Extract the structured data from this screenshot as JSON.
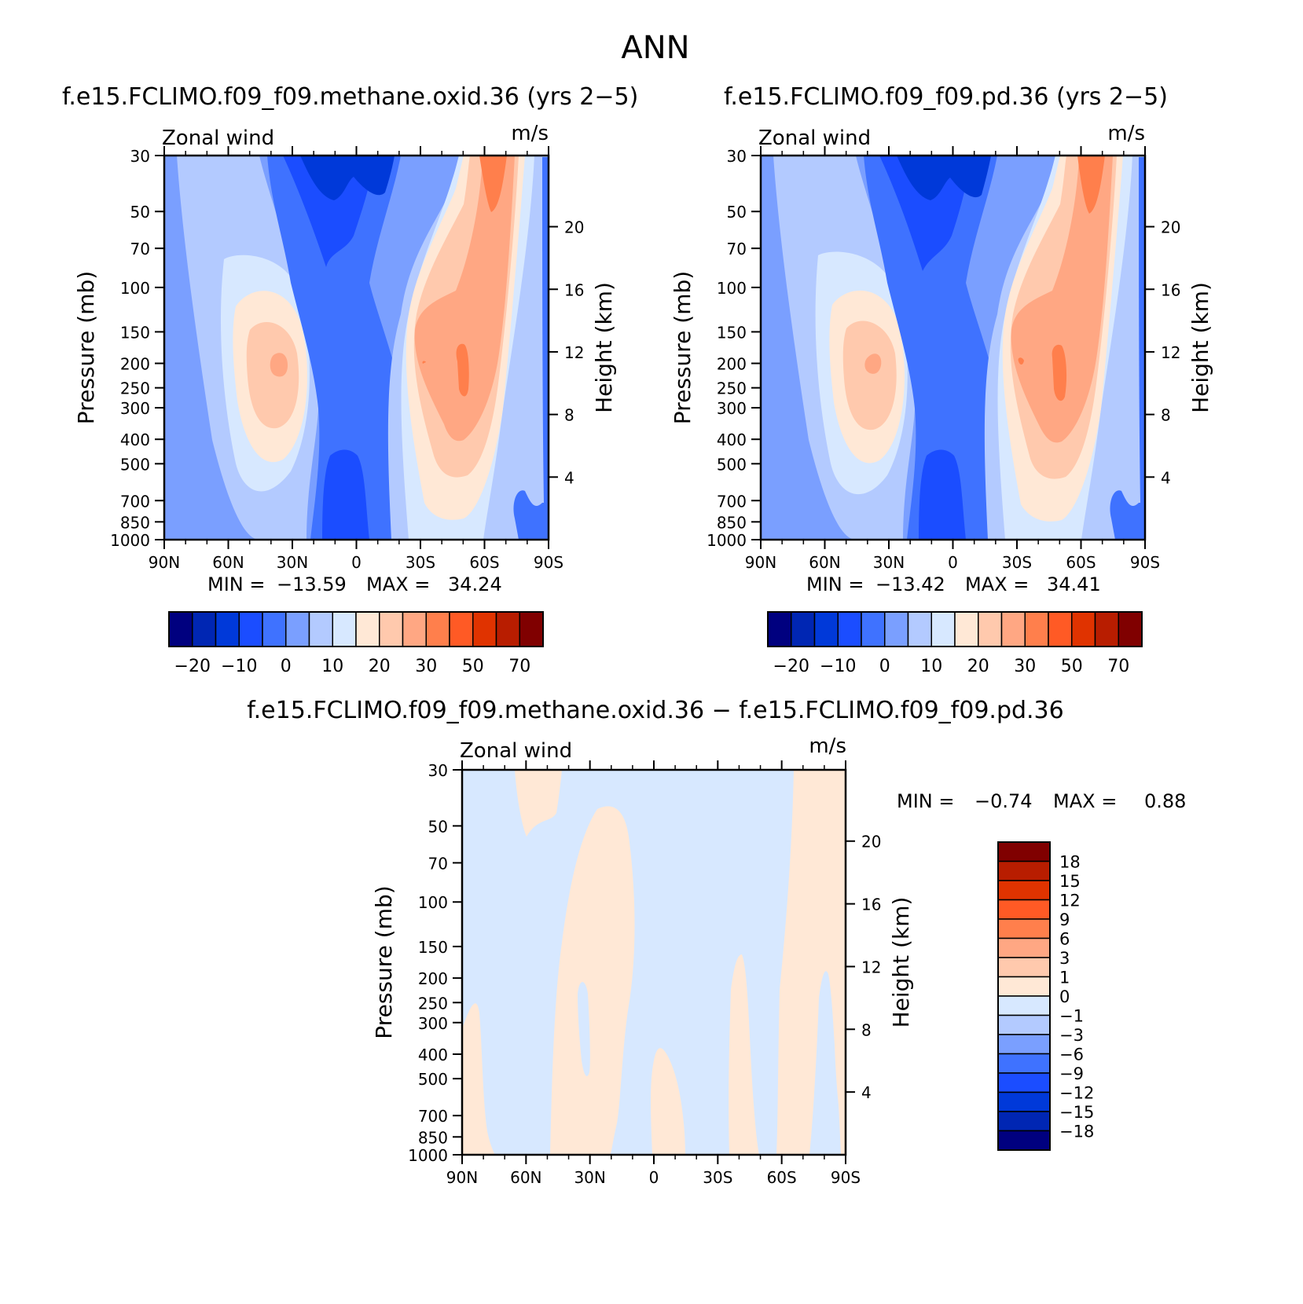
{
  "page_title": "ANN",
  "colors": {
    "main_scale": [
      "#00007f",
      "#0026b3",
      "#0039d9",
      "#1b4dff",
      "#3f72ff",
      "#7a9fff",
      "#b3caff",
      "#d7e8ff",
      "#ffe8d6",
      "#ffc9ad",
      "#ffa783",
      "#ff7f4c",
      "#ff5a25",
      "#e03300",
      "#b81d00",
      "#800000"
    ],
    "diff_scale": [
      "#00007f",
      "#0026b3",
      "#0039d9",
      "#1b4dff",
      "#3f72ff",
      "#7a9fff",
      "#b3caff",
      "#d7e8ff",
      "#ffe8d6",
      "#ffc9ad",
      "#ffa783",
      "#ff7f4c",
      "#ff5a25",
      "#e03300",
      "#b81d00",
      "#800000"
    ]
  },
  "chart_data": [
    {
      "id": "methane",
      "type": "contour",
      "title": "f.e15.FCLIMO.f09_f09.methane.oxid.36 (yrs 2−5)",
      "variable": "Zonal wind",
      "units": "m/s",
      "ylabel": "Pressure (mb)",
      "ylabel_right": "Height (km)",
      "x_ticks": [
        "90N",
        "60N",
        "30N",
        "0",
        "30S",
        "60S",
        "90S"
      ],
      "x_range": [
        90,
        -90
      ],
      "pressure_ticks": [
        "30",
        "50",
        "70",
        "100",
        "150",
        "200",
        "250",
        "300",
        "400",
        "500",
        "700",
        "850",
        "1000"
      ],
      "height_ticks": [
        "20",
        "16",
        "12",
        "8",
        "4"
      ],
      "min_label": "MIN =",
      "min_value": "−13.59",
      "max_label": "MAX =",
      "max_value": "34.24",
      "colorbar_labels": [
        "−20",
        "−10",
        "0",
        "10",
        "20",
        "30",
        "50",
        "70"
      ]
    },
    {
      "id": "pd",
      "type": "contour",
      "title": "f.e15.FCLIMO.f09_f09.pd.36 (yrs 2−5)",
      "variable": "Zonal wind",
      "units": "m/s",
      "ylabel": "Pressure (mb)",
      "ylabel_right": "Height (km)",
      "x_ticks": [
        "90N",
        "60N",
        "30N",
        "0",
        "30S",
        "60S",
        "90S"
      ],
      "x_range": [
        90,
        -90
      ],
      "pressure_ticks": [
        "30",
        "50",
        "70",
        "100",
        "150",
        "200",
        "250",
        "300",
        "400",
        "500",
        "700",
        "850",
        "1000"
      ],
      "height_ticks": [
        "20",
        "16",
        "12",
        "8",
        "4"
      ],
      "min_label": "MIN =",
      "min_value": "−13.42",
      "max_label": "MAX =",
      "max_value": "34.41",
      "colorbar_labels": [
        "−20",
        "−10",
        "0",
        "10",
        "20",
        "30",
        "50",
        "70"
      ]
    },
    {
      "id": "diff",
      "type": "contour",
      "title": "f.e15.FCLIMO.f09_f09.methane.oxid.36 − f.e15.FCLIMO.f09_f09.pd.36",
      "variable": "Zonal wind",
      "units": "m/s",
      "ylabel": "Pressure (mb)",
      "ylabel_right": "Height (km)",
      "x_ticks": [
        "90N",
        "60N",
        "30N",
        "0",
        "30S",
        "60S",
        "90S"
      ],
      "x_range": [
        90,
        -90
      ],
      "pressure_ticks": [
        "30",
        "50",
        "70",
        "100",
        "150",
        "200",
        "250",
        "300",
        "400",
        "500",
        "700",
        "850",
        "1000"
      ],
      "height_ticks": [
        "20",
        "16",
        "12",
        "8",
        "4"
      ],
      "min_label": "MIN =",
      "min_value": "−0.74",
      "max_label": "MAX =",
      "max_value": "0.88",
      "colorbar_labels": [
        "18",
        "15",
        "12",
        "9",
        "6",
        "3",
        "1",
        "0",
        "−1",
        "−3",
        "−6",
        "−9",
        "−12",
        "−15",
        "−18"
      ]
    }
  ]
}
